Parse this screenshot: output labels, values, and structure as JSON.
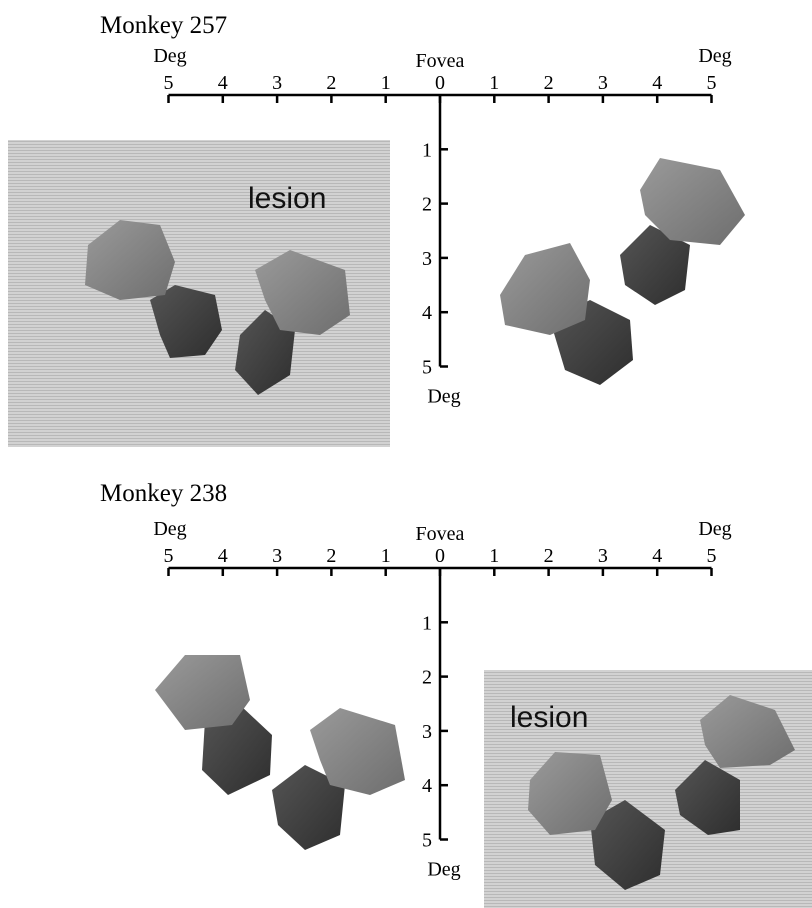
{
  "panels": [
    {
      "title": "Monkey 257",
      "deg_left": "Deg",
      "fovea": "Fovea",
      "deg_right": "Deg",
      "deg_bottom": "Deg",
      "x_ticks": [
        5,
        4,
        3,
        2,
        1,
        0,
        1,
        2,
        3,
        4,
        5
      ],
      "y_ticks": [
        1,
        2,
        3,
        4,
        5
      ],
      "lesion": "lesion"
    },
    {
      "title": "Monkey 238",
      "deg_left": "Deg",
      "fovea": "Fovea",
      "deg_right": "Deg",
      "deg_bottom": "Deg",
      "x_ticks": [
        5,
        4,
        3,
        2,
        1,
        0,
        1,
        2,
        3,
        4,
        5
      ],
      "y_ticks": [
        1,
        2,
        3,
        4,
        5
      ],
      "lesion": "lesion"
    }
  ]
}
